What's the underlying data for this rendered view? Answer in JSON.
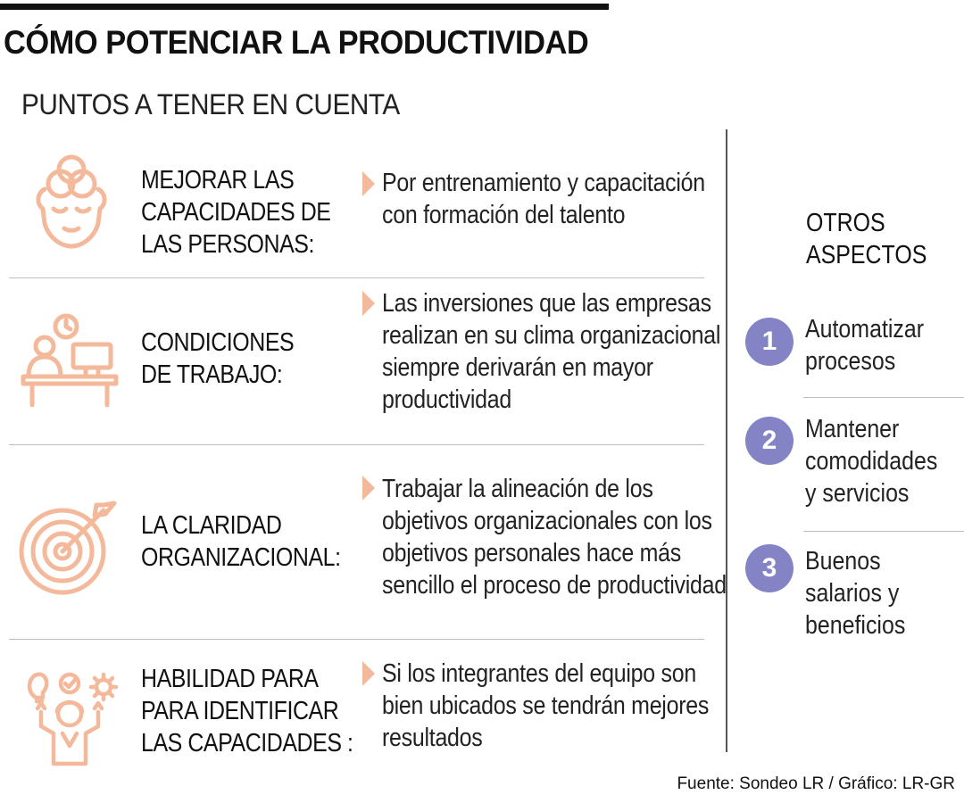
{
  "header": {
    "title": "CÓMO POTENCIAR LA PRODUCTIVIDAD",
    "subtitle": "PUNTOS A TENER EN CUENTA"
  },
  "colors": {
    "icon": "#f3b99a",
    "arrow": "#f3b99a",
    "number_circle": "#8383c6",
    "divider": "#bdbdbd",
    "text": "#1a1a1a"
  },
  "items": [
    {
      "icon": "head-brain-icon",
      "title": "MEJORAR LAS\nCAPACIDADES DE\nLAS PERSONAS:",
      "desc": [
        "Por entrenamiento y capacitación",
        "con formación del talento"
      ]
    },
    {
      "icon": "desk-worker-icon",
      "title": "CONDICIONES\nDE TRABAJO:",
      "desc": [
        "Las inversiones que las empresas",
        "realizan en su clima organizacional",
        "siempre derivarán en mayor",
        "productividad"
      ]
    },
    {
      "icon": "target-arrow-icon",
      "title": "LA CLARIDAD\nORGANIZACIONAL:",
      "desc": [
        "Trabajar la alineación de los",
        "objetivos organizacionales con los",
        "objetivos personales hace más",
        "sencillo el proceso de productividad"
      ]
    },
    {
      "icon": "person-ideas-icon",
      "title": "HABILIDAD PARA\nPARA IDENTIFICAR\nLAS CAPACIDADES :",
      "desc": [
        "Si los integrantes del equipo son",
        "bien ubicados se tendrán mejores",
        "resultados"
      ]
    }
  ],
  "side": {
    "title": [
      "OTROS",
      "ASPECTOS"
    ],
    "items": [
      {
        "number": "1",
        "text": [
          "Automatizar",
          "procesos"
        ]
      },
      {
        "number": "2",
        "text": [
          "Mantener",
          "comodidades",
          "y servicios"
        ]
      },
      {
        "number": "3",
        "text": [
          "Buenos",
          "salarios y",
          "beneficios"
        ]
      }
    ]
  },
  "source": "Fuente: Sondeo LR / Gráfico: LR-GR"
}
